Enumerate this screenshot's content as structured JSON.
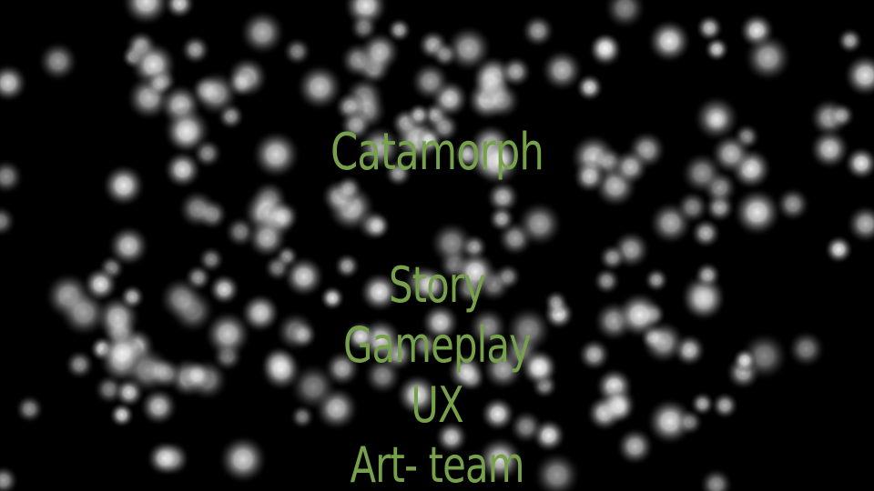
{
  "colors": {
    "background": "#000000",
    "text": "#76a04a",
    "orb": "#ffffff"
  },
  "title": "Catamorph",
  "menu": {
    "items": [
      {
        "label": "Story"
      },
      {
        "label": "Gameplay"
      },
      {
        "label": "UX"
      },
      {
        "label": "Art- team"
      }
    ]
  }
}
